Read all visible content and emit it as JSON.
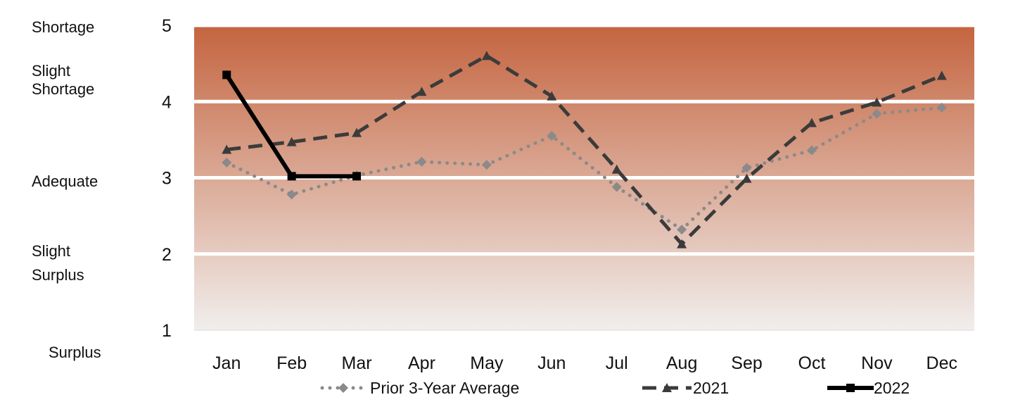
{
  "chart_data": {
    "type": "line",
    "categories": [
      "Jan",
      "Feb",
      "Mar",
      "Apr",
      "May",
      "Jun",
      "Jul",
      "Aug",
      "Sep",
      "Oct",
      "Nov",
      "Dec"
    ],
    "ylim": [
      1,
      5
    ],
    "yticks": [
      1,
      2,
      3,
      4,
      5
    ],
    "grid": true,
    "legend_position": "bottom",
    "category_labels": [
      {
        "text": "Shortage"
      },
      {
        "text": "Slight\nShortage"
      },
      {
        "text": "Adequate"
      },
      {
        "text": "Slight\nSurplus"
      },
      {
        "text": "Surplus"
      }
    ],
    "series": [
      {
        "name": "Prior 3-Year Average",
        "style": "dotted",
        "marker": "diamond",
        "color": "#8a8a8a",
        "values": [
          3.2,
          2.78,
          3.03,
          3.21,
          3.17,
          3.55,
          2.88,
          2.32,
          3.13,
          3.36,
          3.84,
          3.92
        ]
      },
      {
        "name": "2021",
        "style": "dashed",
        "marker": "triangle",
        "color": "#3b3b3b",
        "values": [
          3.37,
          3.47,
          3.59,
          4.13,
          4.6,
          4.07,
          3.11,
          2.13,
          2.99,
          3.72,
          3.99,
          4.34
        ]
      },
      {
        "name": "2022",
        "style": "solid",
        "marker": "square",
        "color": "#000000",
        "values": [
          4.35,
          3.02,
          3.02,
          null,
          null,
          null,
          null,
          null,
          null,
          null,
          null,
          null
        ]
      }
    ],
    "band_gradient": [
      "#c4643f",
      "#f1eeec"
    ]
  }
}
